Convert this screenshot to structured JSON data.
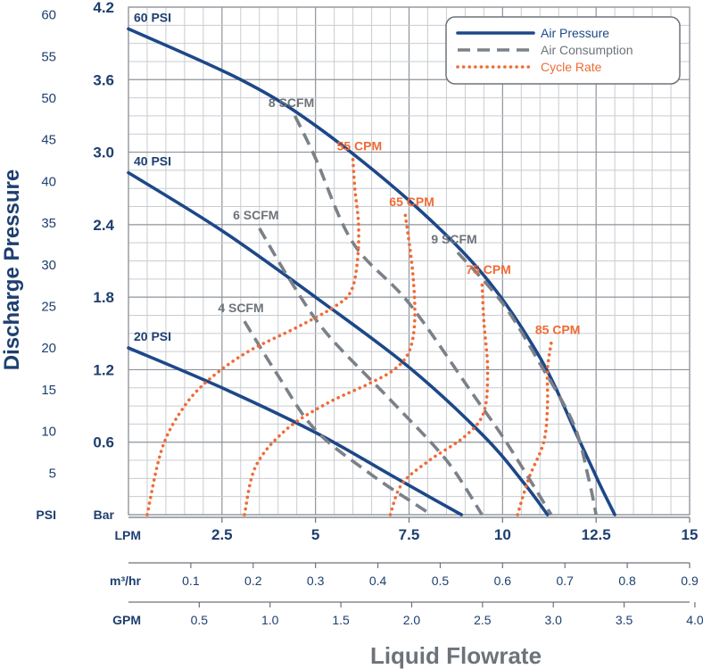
{
  "chart_data": {
    "type": "line",
    "title": "",
    "xlabel": "Liquid Flowrate",
    "ylabel": "Discharge Pressure",
    "x_unit": "LPM",
    "xlim": [
      0,
      15
    ],
    "ylim": [
      0,
      4.2
    ],
    "grid": true,
    "colors": {
      "air_pressure": "#1d4888",
      "air_consumption": "#7b8189",
      "cycle_rate": "#ef6b35",
      "text_dark": "#1d3f6f",
      "text_gray": "#6d737a"
    },
    "axes": {
      "y_bar": {
        "unit": "Bar",
        "ticks": [
          "0.6",
          "1.2",
          "1.8",
          "2.4",
          "3.0",
          "3.6",
          "4.2"
        ]
      },
      "y_psi": {
        "unit": "PSI",
        "ticks": [
          "5",
          "10",
          "15",
          "20",
          "25",
          "30",
          "35",
          "40",
          "45",
          "50",
          "55",
          "60"
        ]
      },
      "x_lpm": {
        "unit": "LPM",
        "ticks": [
          "2.5",
          "5",
          "7.5",
          "10",
          "12.5",
          "15"
        ]
      },
      "x_m3hr": {
        "unit": "m³/hr",
        "ticks": [
          "0.1",
          "0.2",
          "0.3",
          "0.4",
          "0.5",
          "0.6",
          "0.7",
          "0.8",
          "0.9"
        ]
      },
      "x_gpm": {
        "unit": "GPM",
        "ticks": [
          "0.5",
          "1.0",
          "1.5",
          "2.0",
          "2.5",
          "3.0",
          "3.5",
          "4.0"
        ]
      }
    },
    "legend": {
      "position": "top-right",
      "entries": [
        {
          "name": "Air Pressure",
          "style": "solid",
          "color": "#1d4888"
        },
        {
          "name": "Air Consumption",
          "style": "dashed",
          "color": "#7b8189"
        },
        {
          "name": "Cycle Rate",
          "style": "dotted",
          "color": "#ef6b35"
        }
      ]
    },
    "series": [
      {
        "group": "air_pressure",
        "name": "60 PSI",
        "x": [
          0,
          3,
          5,
          7.5,
          9.5,
          11,
          12,
          12.6,
          13.0
        ],
        "y": [
          4.02,
          3.6,
          3.22,
          2.6,
          1.98,
          1.3,
          0.65,
          0.25,
          0
        ]
      },
      {
        "group": "air_pressure",
        "name": "40 PSI",
        "x": [
          0,
          2.5,
          5,
          7.5,
          9.5,
          10.6,
          11.2
        ],
        "y": [
          2.83,
          2.35,
          1.8,
          1.22,
          0.65,
          0.25,
          0
        ]
      },
      {
        "group": "air_pressure",
        "name": "20 PSI",
        "x": [
          0,
          2.5,
          5,
          7,
          8.2,
          8.9
        ],
        "y": [
          1.38,
          1.05,
          0.68,
          0.33,
          0.12,
          0
        ]
      },
      {
        "group": "air_consumption",
        "name": "4 SCFM",
        "x": [
          3.1,
          4,
          5,
          6.5,
          7.7,
          8.1
        ],
        "y": [
          1.6,
          1.15,
          0.7,
          0.33,
          0.08,
          0
        ]
      },
      {
        "group": "air_consumption",
        "name": "6 SCFM",
        "x": [
          3.5,
          4.3,
          5.3,
          7,
          8.5,
          9.45
        ],
        "y": [
          2.37,
          1.95,
          1.5,
          0.95,
          0.45,
          0
        ]
      },
      {
        "group": "air_consumption",
        "name": "8 SCFM",
        "x": [
          4.45,
          5,
          6,
          7.5,
          9.2,
          10.1,
          11.3
        ],
        "y": [
          3.3,
          2.95,
          2.25,
          1.75,
          1.0,
          0.6,
          0
        ]
      },
      {
        "group": "air_consumption",
        "name": "9 SCFM",
        "x": [
          8.8,
          10,
          11,
          11.9,
          12.3,
          12.5
        ],
        "y": [
          2.17,
          1.75,
          1.25,
          0.75,
          0.3,
          0
        ]
      },
      {
        "group": "cycle_rate",
        "name": "55 CPM",
        "x": [
          0.5,
          0.9,
          1.5,
          2.2,
          3.2,
          4.5,
          5.5,
          5.95,
          6.12,
          6.15,
          6.05,
          6.0
        ],
        "y": [
          0,
          0.55,
          0.9,
          1.13,
          1.35,
          1.55,
          1.72,
          1.85,
          2.1,
          2.4,
          2.7,
          2.94
        ]
      },
      {
        "group": "cycle_rate",
        "name": "65 CPM",
        "x": [
          3.1,
          3.4,
          4.2,
          5.3,
          6.4,
          7.1,
          7.5,
          7.65,
          7.6,
          7.4
        ],
        "y": [
          0,
          0.4,
          0.7,
          0.92,
          1.08,
          1.2,
          1.35,
          1.6,
          2.0,
          2.48
        ]
      },
      {
        "group": "cycle_rate",
        "name": "75 CPM",
        "x": [
          7.0,
          7.3,
          8.0,
          9.0,
          9.5,
          9.6,
          9.5,
          9.45
        ],
        "y": [
          0,
          0.25,
          0.44,
          0.65,
          0.85,
          1.2,
          1.6,
          1.92
        ]
      },
      {
        "group": "cycle_rate",
        "name": "85 CPM",
        "x": [
          10.4,
          10.7,
          11.1,
          11.2,
          11.2,
          11.3
        ],
        "y": [
          0,
          0.3,
          0.6,
          0.9,
          1.2,
          1.42
        ]
      }
    ]
  }
}
